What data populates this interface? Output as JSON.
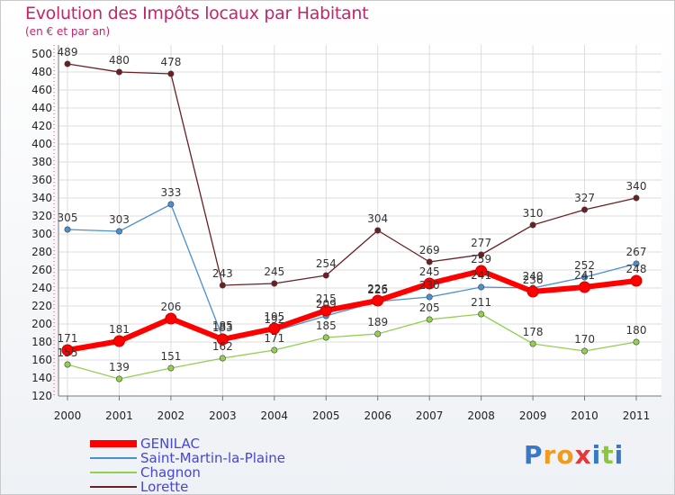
{
  "title": "Evolution des Impôts locaux par Habitant",
  "subtitle": "(en € et par an)",
  "brand": {
    "text": "Proxiti",
    "letter_colors": [
      "#3a78c4",
      "#f09a1e",
      "#f09a1e",
      "#e03a3a",
      "#3a78c4",
      "#8cc63f",
      "#3a78c4"
    ]
  },
  "chart_data": {
    "type": "line",
    "x": [
      "2000",
      "2001",
      "2002",
      "2003",
      "2004",
      "2005",
      "2006",
      "2007",
      "2008",
      "2009",
      "2010",
      "2011"
    ],
    "ylim": [
      120,
      500
    ],
    "yticks": [
      "120",
      "140",
      "160",
      "180",
      "200",
      "220",
      "240",
      "260",
      "280",
      "300",
      "320",
      "340",
      "360",
      "380",
      "400",
      "420",
      "440",
      "460",
      "480",
      "500"
    ],
    "grid": true,
    "series": [
      {
        "name": "Lorette",
        "color": "#6b1f24",
        "values": [
          489,
          480,
          478,
          243,
          245,
          254,
          304,
          269,
          277,
          310,
          327,
          340
        ],
        "labels": [
          "489",
          "480",
          "478",
          "243",
          "245",
          "254",
          "304",
          "269",
          "277",
          "310",
          "327",
          "340"
        ]
      },
      {
        "name": "Saint-Martin-la-Plaine",
        "color": "#4a90cf",
        "values": [
          305,
          303,
          333,
          185,
          192,
          209,
          225,
          230,
          241,
          240,
          252,
          267
        ],
        "labels": [
          "305",
          "303",
          "333",
          "185",
          "192",
          "209",
          "225",
          "230",
          "241",
          "240",
          "252",
          "267"
        ]
      },
      {
        "name": "Chagnon",
        "color": "#92d050",
        "values": [
          155,
          139,
          151,
          162,
          171,
          185,
          189,
          205,
          211,
          178,
          170,
          180
        ],
        "labels": [
          "155",
          "139",
          "151",
          "162",
          "171",
          "185",
          "189",
          "205",
          "211",
          "178",
          "170",
          "180"
        ]
      },
      {
        "name": "GENILAC",
        "color": "#ff0000",
        "values": [
          171,
          181,
          206,
          183,
          195,
          215,
          226,
          245,
          259,
          236,
          241,
          248
        ],
        "labels": [
          "171",
          "181",
          "206",
          "183",
          "195",
          "215",
          "226",
          "245",
          "259",
          "236",
          "241",
          "248"
        ]
      }
    ],
    "legend_order": [
      "GENILAC",
      "Saint-Martin-la-Plaine",
      "Chagnon",
      "Lorette"
    ],
    "legend_placement": "bottom-left"
  }
}
